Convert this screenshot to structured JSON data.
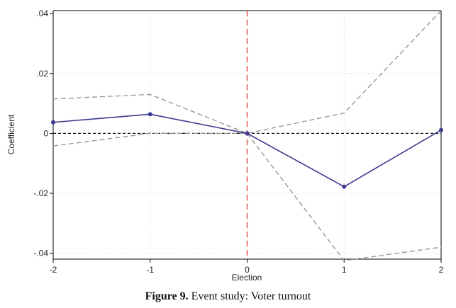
{
  "chart_data": {
    "type": "line",
    "xlabel": "Election",
    "ylabel": "Coefficient",
    "x": [
      -2,
      -1,
      0,
      1,
      2
    ],
    "xlim": [
      -2,
      2
    ],
    "ylim": [
      -0.042,
      0.041
    ],
    "x_ticks": [
      "-2",
      "-1",
      "0",
      "1",
      "2"
    ],
    "y_ticks": [
      {
        "value": 0.04,
        "label": ".04"
      },
      {
        "value": 0.02,
        "label": ".02"
      },
      {
        "value": 0,
        "label": "0"
      },
      {
        "value": -0.02,
        "label": "-.02"
      },
      {
        "value": -0.04,
        "label": "-.04"
      }
    ],
    "grid": true,
    "series": [
      {
        "role": "estimate",
        "values": [
          0.0037,
          0.0064,
          0.0,
          -0.0178,
          0.0011
        ],
        "color": "#3b3b8f",
        "style": "solid",
        "markers": true
      },
      {
        "role": "upper-ci",
        "values": [
          0.0115,
          0.013,
          0.0,
          0.0068,
          0.041
        ],
        "color": "#999999",
        "style": "dashed"
      },
      {
        "role": "lower-ci",
        "values": [
          -0.0042,
          0.0,
          0.0,
          -0.0425,
          -0.038
        ],
        "color": "#999999",
        "style": "dashed"
      }
    ],
    "reference_lines": [
      {
        "orientation": "horizontal",
        "value": 0,
        "color": "#111111",
        "style": "dashed"
      },
      {
        "orientation": "vertical",
        "value": 0,
        "color": "#e05555",
        "style": "dashed"
      }
    ]
  },
  "caption": {
    "label": "Figure 9",
    "text": "Event study: Voter turnout"
  }
}
